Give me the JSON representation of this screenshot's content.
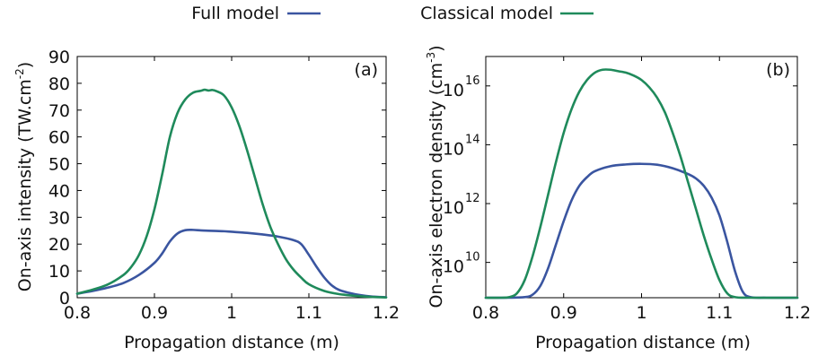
{
  "legend": [
    {
      "label": "Full model",
      "color": "#3a55a0"
    },
    {
      "label": "Classical model",
      "color": "#1f8a5b"
    }
  ],
  "chart_data": [
    {
      "type": "line",
      "panel_label": "(a)",
      "xlabel": "Propagation distance (m)",
      "ylabel_parts": [
        "On-axis intensity (TW.cm",
        "-2",
        ")"
      ],
      "xlim": [
        0.8,
        1.2
      ],
      "ylim": [
        0,
        90
      ],
      "xticks": [
        0.8,
        0.9,
        1.0,
        1.1,
        1.2
      ],
      "xtick_labels": [
        "0.8",
        "0.9",
        "1",
        "1.1",
        "1.2"
      ],
      "yticks": [
        0,
        10,
        20,
        30,
        40,
        50,
        60,
        70,
        80,
        90
      ],
      "ytick_labels": [
        "0",
        "10",
        "20",
        "30",
        "40",
        "50",
        "60",
        "70",
        "80",
        "90"
      ],
      "log_scale": false,
      "series": [
        {
          "name": "Full model",
          "color": "#3a55a0",
          "x": [
            0.8,
            0.82,
            0.84,
            0.86,
            0.88,
            0.9,
            0.91,
            0.92,
            0.93,
            0.94,
            0.95,
            0.96,
            0.97,
            0.98,
            0.99,
            1.0,
            1.02,
            1.04,
            1.06,
            1.08,
            1.09,
            1.1,
            1.11,
            1.12,
            1.13,
            1.14,
            1.16,
            1.18,
            1.2
          ],
          "y": [
            1.5,
            2.5,
            3.8,
            5.5,
            8.5,
            13,
            16.5,
            21,
            24,
            25.2,
            25.3,
            25.1,
            25.0,
            24.9,
            24.8,
            24.6,
            24.2,
            23.6,
            22.8,
            21.5,
            20,
            16,
            11.5,
            7.5,
            4.5,
            2.8,
            1.3,
            0.5,
            0.2
          ]
        },
        {
          "name": "Classical model",
          "color": "#1f8a5b",
          "x": [
            0.8,
            0.82,
            0.84,
            0.86,
            0.87,
            0.88,
            0.89,
            0.9,
            0.91,
            0.92,
            0.93,
            0.94,
            0.95,
            0.96,
            0.965,
            0.97,
            0.975,
            0.98,
            0.99,
            1.0,
            1.01,
            1.02,
            1.03,
            1.04,
            1.05,
            1.06,
            1.07,
            1.08,
            1.09,
            1.1,
            1.12,
            1.14,
            1.16,
            1.18,
            1.2
          ],
          "y": [
            1.5,
            3,
            5,
            8.5,
            11.5,
            16,
            23,
            33,
            46,
            60,
            69,
            74,
            76.5,
            77.2,
            77.6,
            77.3,
            77.5,
            77.1,
            75.5,
            71,
            64,
            55,
            45,
            35,
            26.5,
            20,
            14.5,
            10.5,
            7.5,
            5,
            2.5,
            1.3,
            0.7,
            0.3,
            0.1
          ]
        }
      ]
    },
    {
      "type": "line",
      "panel_label": "(b)",
      "xlabel": "Propagation distance (m)",
      "ylabel_parts": [
        "On-axis electron density (cm",
        "-3",
        ")"
      ],
      "xlim": [
        0.8,
        1.2
      ],
      "ylim_log10": [
        8.8,
        17.0
      ],
      "xticks": [
        0.8,
        0.9,
        1.0,
        1.1,
        1.2
      ],
      "xtick_labels": [
        "0.8",
        "0.9",
        "1",
        "1.1",
        "1.2"
      ],
      "yticks_log10": [
        10,
        12,
        14,
        16
      ],
      "ytick_base": "10",
      "ytick_exponents": [
        "10",
        "12",
        "14",
        "16"
      ],
      "log_scale": true,
      "series": [
        {
          "name": "Full model",
          "color": "#3a55a0",
          "x": [
            0.8,
            0.83,
            0.85,
            0.86,
            0.87,
            0.88,
            0.89,
            0.9,
            0.91,
            0.92,
            0.93,
            0.94,
            0.96,
            0.98,
            1.0,
            1.02,
            1.04,
            1.06,
            1.07,
            1.08,
            1.09,
            1.1,
            1.11,
            1.12,
            1.13,
            1.14,
            1.16,
            1.2
          ],
          "y": [
            8.8,
            8.8,
            8.82,
            8.9,
            9.2,
            9.8,
            10.6,
            11.4,
            12.1,
            12.6,
            12.9,
            13.1,
            13.27,
            13.33,
            13.35,
            13.32,
            13.2,
            13.0,
            12.85,
            12.6,
            12.2,
            11.6,
            10.7,
            9.7,
            9.0,
            8.82,
            8.8,
            8.8
          ]
        },
        {
          "name": "Classical model",
          "color": "#1f8a5b",
          "x": [
            0.8,
            0.82,
            0.83,
            0.84,
            0.85,
            0.86,
            0.87,
            0.88,
            0.89,
            0.9,
            0.91,
            0.92,
            0.93,
            0.94,
            0.95,
            0.96,
            0.97,
            0.98,
            0.99,
            1.0,
            1.01,
            1.02,
            1.03,
            1.04,
            1.05,
            1.06,
            1.07,
            1.08,
            1.09,
            1.1,
            1.11,
            1.12,
            1.14,
            1.2
          ],
          "y": [
            8.8,
            8.8,
            8.82,
            8.95,
            9.4,
            10.2,
            11.2,
            12.3,
            13.4,
            14.4,
            15.2,
            15.8,
            16.2,
            16.45,
            16.55,
            16.55,
            16.5,
            16.45,
            16.35,
            16.2,
            15.95,
            15.6,
            15.1,
            14.4,
            13.6,
            12.7,
            11.8,
            10.9,
            10.1,
            9.4,
            8.95,
            8.82,
            8.8,
            8.8
          ]
        }
      ]
    }
  ]
}
